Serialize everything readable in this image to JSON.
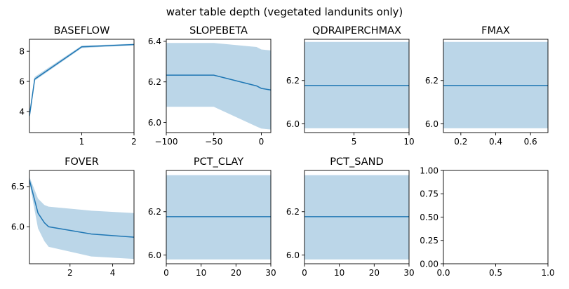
{
  "figure": {
    "title": "water table depth (vegetated landunits only)"
  },
  "colors": {
    "line": "#1f77b4",
    "band": "#1f77b4",
    "axis": "#000000",
    "background": "#ffffff"
  },
  "chart_data": [
    {
      "type": "line",
      "title": "BASEFLOW",
      "xlabel": "",
      "ylabel": "",
      "xlim": [
        0,
        2
      ],
      "ylim": [
        2.6,
        8.8
      ],
      "xticks": [
        1,
        2
      ],
      "yticks": [
        4,
        6,
        8
      ],
      "xtick_labels": [
        "1",
        "2"
      ],
      "ytick_labels": [
        "4",
        "6",
        "8"
      ],
      "x": [
        0,
        0.1,
        1,
        2
      ],
      "y": [
        3.7,
        6.15,
        8.3,
        8.45
      ],
      "band_low": [
        3.6,
        6.05,
        8.22,
        8.4
      ],
      "band_high": [
        3.8,
        6.3,
        8.38,
        8.5
      ]
    },
    {
      "type": "line",
      "title": "SLOPEBETA",
      "xlabel": "",
      "ylabel": "",
      "xlim": [
        -100,
        10
      ],
      "ylim": [
        5.95,
        6.41
      ],
      "xticks": [
        -100,
        -50,
        0
      ],
      "yticks": [
        6.0,
        6.2,
        6.4
      ],
      "xtick_labels": [
        "−100",
        "−50",
        "0"
      ],
      "ytick_labels": [
        "6.0",
        "6.2",
        "6.4"
      ],
      "x": [
        -100,
        -50,
        -5,
        0,
        10
      ],
      "y": [
        6.233,
        6.233,
        6.18,
        6.168,
        6.16
      ],
      "band_low": [
        6.077,
        6.077,
        5.98,
        5.97,
        5.965
      ],
      "band_high": [
        6.392,
        6.392,
        6.372,
        6.36,
        6.355
      ]
    },
    {
      "type": "line",
      "title": "QDRAIPERCHMAX",
      "xlabel": "",
      "ylabel": "",
      "xlim": [
        0.5,
        10
      ],
      "ylim": [
        5.96,
        6.39
      ],
      "xticks": [
        5,
        10
      ],
      "yticks": [
        6.0,
        6.2
      ],
      "xtick_labels": [
        "5",
        "10"
      ],
      "ytick_labels": [
        "6.0",
        "6.2"
      ],
      "x": [
        0.5,
        10
      ],
      "y": [
        6.177,
        6.177
      ],
      "band_low": [
        5.98,
        5.98
      ],
      "band_high": [
        6.378,
        6.378
      ]
    },
    {
      "type": "line",
      "title": "FMAX",
      "xlabel": "",
      "ylabel": "",
      "xlim": [
        0.1,
        0.7
      ],
      "ylim": [
        5.96,
        6.39
      ],
      "xticks": [
        0.2,
        0.4,
        0.6
      ],
      "yticks": [
        6.0,
        6.2
      ],
      "xtick_labels": [
        "0.2",
        "0.4",
        "0.6"
      ],
      "ytick_labels": [
        "6.0",
        "6.2"
      ],
      "x": [
        0.1,
        0.7
      ],
      "y": [
        6.177,
        6.177
      ],
      "band_low": [
        5.98,
        5.98
      ],
      "band_high": [
        6.378,
        6.378
      ]
    },
    {
      "type": "line",
      "title": "FOVER",
      "xlabel": "",
      "ylabel": "",
      "xlim": [
        0.1,
        5
      ],
      "ylim": [
        5.54,
        6.7
      ],
      "xticks": [
        2,
        4
      ],
      "yticks": [
        6.0,
        6.5
      ],
      "xtick_labels": [
        "2",
        "4"
      ],
      "ytick_labels": [
        "6.0",
        "6.5"
      ],
      "x": [
        0.1,
        0.5,
        0.8,
        1,
        3,
        5
      ],
      "y": [
        6.58,
        6.17,
        6.05,
        6.0,
        5.91,
        5.87
      ],
      "band_low": [
        6.55,
        5.98,
        5.82,
        5.75,
        5.63,
        5.6
      ],
      "band_high": [
        6.62,
        6.35,
        6.27,
        6.25,
        6.2,
        6.17
      ]
    },
    {
      "type": "line",
      "title": "PCT_CLAY",
      "xlabel": "",
      "ylabel": "",
      "xlim": [
        0,
        30
      ],
      "ylim": [
        5.96,
        6.39
      ],
      "xticks": [
        0,
        10,
        20,
        30
      ],
      "yticks": [
        6.0,
        6.2
      ],
      "xtick_labels": [
        "0",
        "10",
        "20",
        "30"
      ],
      "ytick_labels": [
        "6.0",
        "6.2"
      ],
      "x": [
        0,
        30
      ],
      "y": [
        6.177,
        6.177
      ],
      "band_low": [
        5.98,
        5.98
      ],
      "band_high": [
        6.368,
        6.368
      ]
    },
    {
      "type": "line",
      "title": "PCT_SAND",
      "xlabel": "",
      "ylabel": "",
      "xlim": [
        0,
        30
      ],
      "ylim": [
        5.96,
        6.39
      ],
      "xticks": [
        0,
        10,
        20,
        30
      ],
      "yticks": [
        6.0,
        6.2
      ],
      "xtick_labels": [
        "0",
        "10",
        "20",
        "30"
      ],
      "ytick_labels": [
        "6.0",
        "6.2"
      ],
      "x": [
        0,
        30
      ],
      "y": [
        6.177,
        6.177
      ],
      "band_low": [
        5.98,
        5.98
      ],
      "band_high": [
        6.368,
        6.368
      ]
    },
    {
      "type": "line",
      "title": "",
      "xlabel": "",
      "ylabel": "",
      "xlim": [
        0,
        1
      ],
      "ylim": [
        0,
        1
      ],
      "xticks": [
        0,
        0.5,
        1
      ],
      "yticks": [
        0,
        0.25,
        0.5,
        0.75,
        1
      ],
      "xtick_labels": [
        "0.0",
        "0.5",
        "1.0"
      ],
      "ytick_labels": [
        "0.00",
        "0.25",
        "0.50",
        "0.75",
        "1.00"
      ],
      "x": [],
      "y": [],
      "band_low": [],
      "band_high": []
    }
  ]
}
